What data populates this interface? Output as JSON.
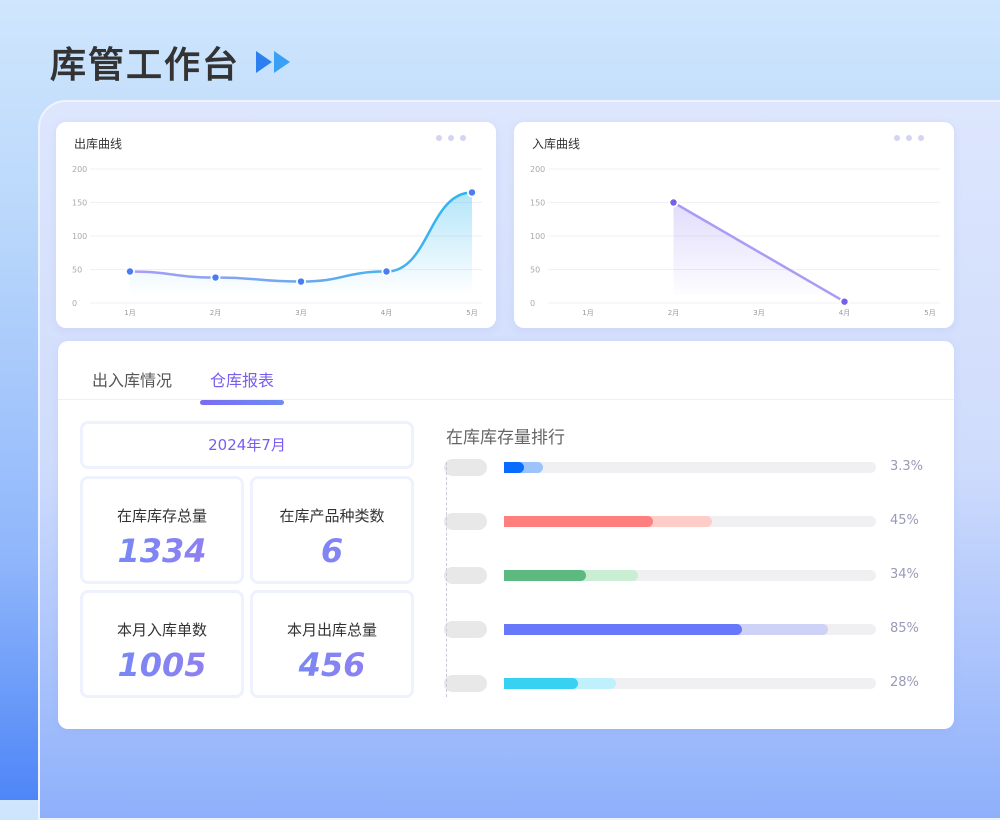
{
  "header": {
    "title": "库管工作台",
    "icon": "double-chevron-right-icon"
  },
  "out_chart": {
    "title": "出库曲线",
    "more_icon": "more-dots-icon"
  },
  "in_chart": {
    "title": "入库曲线",
    "more_icon": "more-dots-icon"
  },
  "chart_data": [
    {
      "type": "line",
      "title": "出库曲线",
      "categories": [
        "1月",
        "2月",
        "3月",
        "4月",
        "5月"
      ],
      "values": [
        47,
        38,
        32,
        47,
        165
      ],
      "ylim": [
        0,
        200
      ],
      "yticks": [
        0,
        50,
        100,
        150,
        200
      ],
      "smooth": true,
      "area": true,
      "grid": true,
      "colors": [
        "#a99cf5",
        "#29b6f0"
      ]
    },
    {
      "type": "line",
      "title": "入库曲线",
      "categories": [
        "1月",
        "2月",
        "3月",
        "4月",
        "5月"
      ],
      "values": [
        null,
        150,
        null,
        2,
        null
      ],
      "ylim": [
        0,
        200
      ],
      "yticks": [
        0,
        50,
        100,
        150,
        200
      ],
      "area": true,
      "grid": true,
      "colors": [
        "#a99cf5"
      ]
    }
  ],
  "tabs": [
    {
      "label": "出入库情况",
      "active": false
    },
    {
      "label": "仓库报表",
      "active": true
    }
  ],
  "report": {
    "date": "2024年7月",
    "stats": [
      {
        "label": "在库库存总量",
        "value": "1334"
      },
      {
        "label": "在库产品种类数",
        "value": "6"
      },
      {
        "label": "本月入库单数",
        "value": "1005"
      },
      {
        "label": "本月出库总量",
        "value": "456"
      }
    ],
    "ranking_title": "在库库存量排行",
    "ranking": [
      {
        "pct": "3.3%",
        "dark": 0.054,
        "light": 0.105,
        "dark_color": "#0a6cff",
        "light_color": "#9cc3fb"
      },
      {
        "pct": "45%",
        "dark": 0.4,
        "light": 0.56,
        "dark_color": "#ff7f7f",
        "light_color": "#ffcdc8"
      },
      {
        "pct": "34%",
        "dark": 0.22,
        "light": 0.36,
        "dark_color": "#5cb97f",
        "light_color": "#c9eed4"
      },
      {
        "pct": "85%",
        "dark": 0.64,
        "light": 0.87,
        "dark_color": "#6878fb",
        "light_color": "#cdd2f6"
      },
      {
        "pct": "28%",
        "dark": 0.2,
        "light": 0.3,
        "dark_color": "#37d2f2",
        "light_color": "#bff0fb"
      }
    ]
  }
}
